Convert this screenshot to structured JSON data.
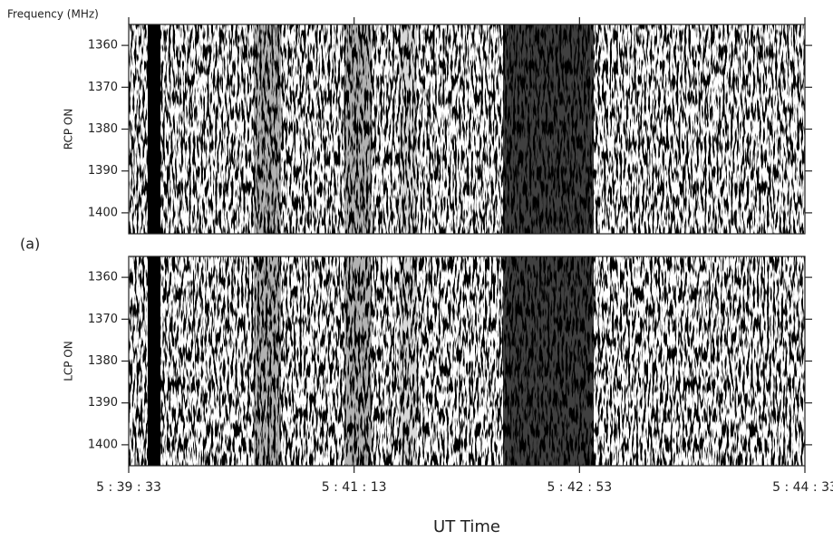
{
  "panel_label": "(a)",
  "chart_data": [
    {
      "type": "heatmap",
      "axis_title": "Frequency (MHz)",
      "ylabel": "RCP ON",
      "ylim": [
        1355,
        1405
      ],
      "yticks": [
        1360,
        1370,
        1380,
        1390,
        1400
      ],
      "y_inverted": true
    },
    {
      "type": "heatmap",
      "ylabel": "LCP ON",
      "ylim": [
        1355,
        1405
      ],
      "yticks": [
        1360,
        1370,
        1380,
        1390,
        1400
      ],
      "y_inverted": true,
      "categories": [
        "5 : 39 : 33",
        "5 : 41 : 13",
        "5 : 42 : 53",
        "5 : 44 : 33"
      ],
      "xlabel": "UT Time"
    }
  ]
}
